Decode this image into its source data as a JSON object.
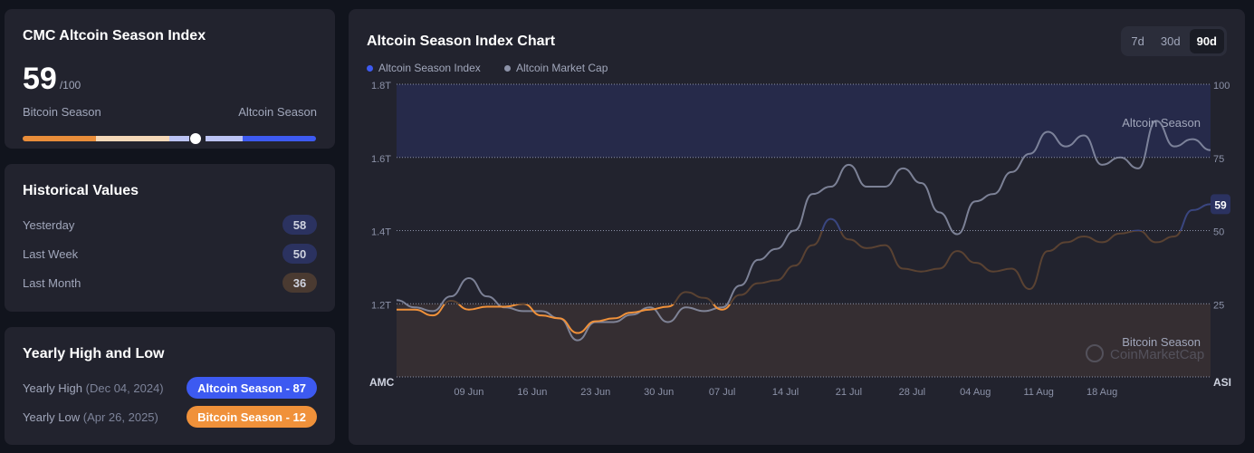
{
  "index_card": {
    "title": "CMC Altcoin Season Index",
    "value": "59",
    "max": "/100",
    "left_label": "Bitcoin Season",
    "right_label": "Altcoin Season",
    "level_percent": 59
  },
  "historical": {
    "title": "Historical Values",
    "items": [
      {
        "label": "Yesterday",
        "value": "58",
        "tone": "altcoin"
      },
      {
        "label": "Last Week",
        "value": "50",
        "tone": "altcoin"
      },
      {
        "label": "Last Month",
        "value": "36",
        "tone": "bitcoin"
      }
    ]
  },
  "yearly": {
    "title": "Yearly High and Low",
    "high_label": "Yearly High",
    "high_date": "(Dec 04, 2024)",
    "high_value": "Altcoin Season - 87",
    "low_label": "Yearly Low",
    "low_date": "(Apr 26, 2025)",
    "low_value": "Bitcoin Season - 12"
  },
  "colors": {
    "altcoin": "#3d5af1",
    "bitcoin": "#f0913a",
    "market_cap": "#8c92a8"
  },
  "chart_header": {
    "title": "Altcoin Season Index Chart",
    "tabs": [
      "7d",
      "30d",
      "90d"
    ],
    "active_tab": "90d"
  },
  "chart_data": {
    "type": "line",
    "title": "Altcoin Season Index Chart",
    "legend": [
      "Altcoin Season Index",
      "Altcoin Market Cap"
    ],
    "legend_placement": "top-left",
    "x_ticks": [
      "09 Jun",
      "16 Jun",
      "23 Jun",
      "30 Jun",
      "07 Jul",
      "14 Jul",
      "21 Jul",
      "28 Jul",
      "04 Aug",
      "11 Aug",
      "18 Aug"
    ],
    "x_tick_dates": [
      "2025-06-09",
      "2025-06-16",
      "2025-06-23",
      "2025-06-30",
      "2025-07-07",
      "2025-07-14",
      "2025-07-21",
      "2025-07-28",
      "2025-08-04",
      "2025-08-11",
      "2025-08-18"
    ],
    "x_range": [
      "2025-06-01",
      "2025-08-30"
    ],
    "left_axis": {
      "label": "AMC",
      "ticks": [
        "1.2T",
        "1.4T",
        "1.6T",
        "1.8T"
      ],
      "range": [
        1.0,
        1.8
      ],
      "unit": "T"
    },
    "right_axis": {
      "label": "ASI",
      "ticks": [
        "25",
        "50",
        "75",
        "100"
      ],
      "range": [
        0,
        100
      ]
    },
    "bands": [
      {
        "label": "Altcoin Season",
        "from": 75,
        "to": 100
      },
      {
        "label": "Bitcoin Season",
        "from": 0,
        "to": 25
      }
    ],
    "last_value_label": "59",
    "watermark": "CoinMarketCap",
    "dates": [
      "2025-06-01",
      "2025-06-03",
      "2025-06-05",
      "2025-06-07",
      "2025-06-09",
      "2025-06-11",
      "2025-06-13",
      "2025-06-15",
      "2025-06-17",
      "2025-06-19",
      "2025-06-21",
      "2025-06-23",
      "2025-06-25",
      "2025-06-27",
      "2025-06-29",
      "2025-07-01",
      "2025-07-03",
      "2025-07-05",
      "2025-07-07",
      "2025-07-09",
      "2025-07-11",
      "2025-07-13",
      "2025-07-15",
      "2025-07-17",
      "2025-07-19",
      "2025-07-21",
      "2025-07-23",
      "2025-07-25",
      "2025-07-27",
      "2025-07-29",
      "2025-07-31",
      "2025-08-02",
      "2025-08-04",
      "2025-08-06",
      "2025-08-08",
      "2025-08-10",
      "2025-08-12",
      "2025-08-14",
      "2025-08-16",
      "2025-08-18",
      "2025-08-20",
      "2025-08-22",
      "2025-08-24",
      "2025-08-26",
      "2025-08-28",
      "2025-08-30"
    ],
    "series": [
      {
        "name": "Altcoin Season Index",
        "axis": "right",
        "values": [
          23,
          23,
          21,
          26,
          23,
          24,
          24,
          25,
          21,
          20,
          15,
          19,
          20,
          22,
          23,
          24,
          29,
          27,
          23,
          28,
          32,
          33,
          38,
          45,
          54,
          47,
          44,
          45,
          37,
          36,
          37,
          43,
          39,
          36,
          37,
          30,
          43,
          46,
          48,
          46,
          49,
          50,
          46,
          48,
          57,
          59
        ]
      },
      {
        "name": "Altcoin Market Cap",
        "axis": "left",
        "unit": "T",
        "values": [
          1.21,
          1.19,
          1.18,
          1.22,
          1.27,
          1.22,
          1.19,
          1.18,
          1.18,
          1.16,
          1.1,
          1.15,
          1.15,
          1.17,
          1.19,
          1.15,
          1.19,
          1.18,
          1.19,
          1.25,
          1.32,
          1.35,
          1.4,
          1.5,
          1.52,
          1.58,
          1.52,
          1.52,
          1.57,
          1.53,
          1.45,
          1.39,
          1.48,
          1.5,
          1.56,
          1.61,
          1.67,
          1.63,
          1.66,
          1.58,
          1.6,
          1.57,
          1.7,
          1.63,
          1.65,
          1.62
        ]
      }
    ]
  }
}
